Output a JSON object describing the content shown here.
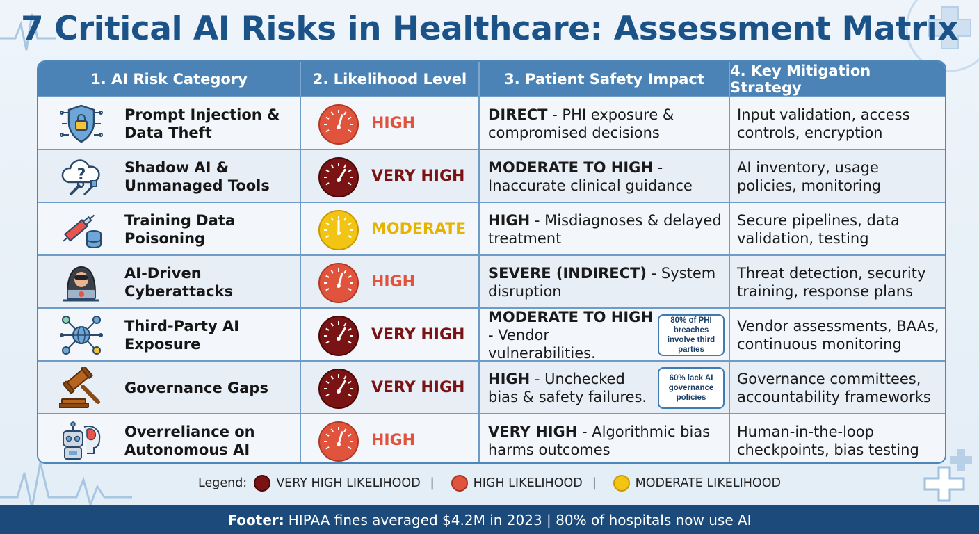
{
  "title": "7 Critical AI Risks in Healthcare: Assessment Matrix",
  "colors": {
    "very_high": "#7a1414",
    "high": "#e0533c",
    "moderate": "#f2c414",
    "header_bg": "#4b83b6",
    "footer_bg": "#1c4a7a",
    "title": "#1b5389"
  },
  "headers": [
    "1. AI Risk Category",
    "2. Likelihood Level",
    "3. Patient Safety Impact",
    "4. Key Mitigation Strategy"
  ],
  "rows": [
    {
      "icon": "shield-lock-icon",
      "name_lines": [
        "Prompt Injection &",
        "Data Theft"
      ],
      "level": "HIGH",
      "level_key": "high",
      "gauge": "gauge-high-icon",
      "impact_bold": "DIRECT",
      "impact_rest": " - PHI exposure & compromised decisions",
      "callout": "",
      "mitigation": "Input validation, access controls, encryption"
    },
    {
      "icon": "cloud-question-tools-icon",
      "name_lines": [
        "Shadow AI &",
        "Unmanaged Tools"
      ],
      "level": "VERY HIGH",
      "level_key": "very_high",
      "gauge": "gauge-very-high-icon",
      "impact_bold": "MODERATE TO HIGH",
      "impact_rest": " - Inaccurate clinical guidance",
      "callout": "",
      "mitigation": "AI inventory, usage policies, monitoring"
    },
    {
      "icon": "syringe-database-icon",
      "name_lines": [
        "Training Data",
        "Poisoning"
      ],
      "level": "MODERATE",
      "level_key": "moderate",
      "gauge": "gauge-moderate-icon",
      "impact_bold": "HIGH",
      "impact_rest": " - Misdiagnoses & delayed treatment",
      "callout": "",
      "mitigation": "Secure pipelines, data validation, testing"
    },
    {
      "icon": "hacker-laptop-icon",
      "name_lines": [
        "AI-Driven",
        "Cyberattacks"
      ],
      "level": "HIGH",
      "level_key": "high",
      "gauge": "gauge-high-icon",
      "impact_bold": "SEVERE (INDIRECT)",
      "impact_rest": " - System disruption",
      "callout": "",
      "mitigation": "Threat detection, security training, response plans"
    },
    {
      "icon": "network-globe-icon",
      "name_lines": [
        "Third-Party AI",
        "Exposure"
      ],
      "level": "VERY HIGH",
      "level_key": "very_high",
      "gauge": "gauge-very-high-icon",
      "impact_bold": "MODERATE TO HIGH",
      "impact_rest": " - Vendor vulnerabilities.",
      "callout": "80% of PHI breaches involve third parties",
      "mitigation": "Vendor assessments, BAAs, continuous monitoring"
    },
    {
      "icon": "gavel-icon",
      "name_lines": [
        "Governance Gaps"
      ],
      "level": "VERY HIGH",
      "level_key": "very_high",
      "gauge": "gauge-very-high-icon",
      "impact_bold": "HIGH",
      "impact_rest": " - Unchecked bias & safety failures.",
      "callout": "60% lack AI governance policies",
      "mitigation": "Governance committees, accountability frameworks"
    },
    {
      "icon": "robot-brain-icon",
      "name_lines": [
        "Overreliance on",
        "Autonomous AI"
      ],
      "level": "HIGH",
      "level_key": "high",
      "gauge": "gauge-high-icon",
      "impact_bold": "VERY HIGH",
      "impact_rest": " - Algorithmic bias harms outcomes",
      "callout": "",
      "mitigation": "Human-in-the-loop checkpoints, bias testing"
    }
  ],
  "legend": {
    "label": "Legend:",
    "items": [
      {
        "text": "VERY HIGH LIKELIHOOD",
        "key": "very_high"
      },
      {
        "text": "HIGH LIKELIHOOD",
        "key": "high"
      },
      {
        "text": "MODERATE LIKELIHOOD",
        "key": "moderate"
      }
    ],
    "separator": "|"
  },
  "footer": {
    "label": "Footer:",
    "text": "HIPAA fines averaged $4.2M in 2023 | 80% of hospitals now use AI"
  }
}
